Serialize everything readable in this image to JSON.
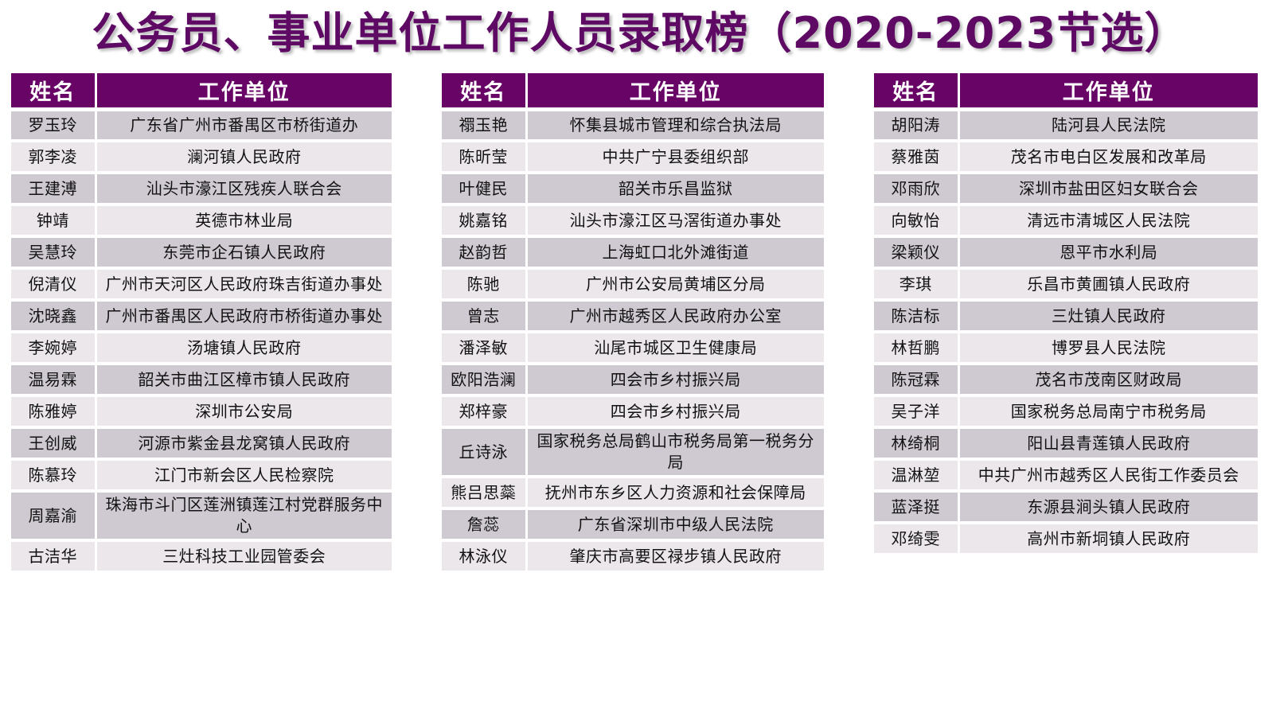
{
  "title": "公务员、事业单位工作人员录取榜（2020-2023节选）",
  "columns": {
    "name": "姓名",
    "unit": "工作单位"
  },
  "colors": {
    "header_bg": "#670466",
    "title_color": "#5e0a64",
    "row_dark": "#cfc9d2",
    "row_light": "#ebe7eb",
    "header_text": "#ffffff"
  },
  "tables": [
    {
      "rows": [
        {
          "name": "罗玉玲",
          "unit": "广东省广州市番禺区市桥街道办"
        },
        {
          "name": "郭李凌",
          "unit": "澜河镇人民政府"
        },
        {
          "name": "王建溥",
          "unit": "汕头市濠江区残疾人联合会"
        },
        {
          "name": "钟靖",
          "unit": "英德市林业局"
        },
        {
          "name": "吴慧玲",
          "unit": "东莞市企石镇人民政府"
        },
        {
          "name": "倪清仪",
          "unit": "广州市天河区人民政府珠吉街道办事处"
        },
        {
          "name": "沈晓鑫",
          "unit": "广州市番禺区人民政府市桥街道办事处"
        },
        {
          "name": "李婉婷",
          "unit": "汤塘镇人民政府"
        },
        {
          "name": "温易霖",
          "unit": "韶关市曲江区樟市镇人民政府"
        },
        {
          "name": "陈雅婷",
          "unit": "深圳市公安局"
        },
        {
          "name": "王创威",
          "unit": "河源市紫金县龙窝镇人民政府"
        },
        {
          "name": "陈慕玲",
          "unit": "江门市新会区人民检察院"
        },
        {
          "name": "周嘉渝",
          "unit": "珠海市斗门区莲洲镇莲江村党群服务中心"
        },
        {
          "name": "古洁华",
          "unit": "三灶科技工业园管委会"
        }
      ]
    },
    {
      "rows": [
        {
          "name": "禤玉艳",
          "unit": "怀集县城市管理和综合执法局"
        },
        {
          "name": "陈昕莹",
          "unit": "中共广宁县委组织部"
        },
        {
          "name": "叶健民",
          "unit": "韶关市乐昌监狱"
        },
        {
          "name": "姚嘉铭",
          "unit": "汕头市濠江区马滘街道办事处"
        },
        {
          "name": "赵韵哲",
          "unit": "上海虹口北外滩街道"
        },
        {
          "name": "陈驰",
          "unit": "广州市公安局黄埔区分局"
        },
        {
          "name": "曾志",
          "unit": "广州市越秀区人民政府办公室"
        },
        {
          "name": "潘泽敏",
          "unit": "汕尾市城区卫生健康局"
        },
        {
          "name": "欧阳浩澜",
          "unit": "四会市乡村振兴局"
        },
        {
          "name": "郑梓豪",
          "unit": "四会市乡村振兴局"
        },
        {
          "name": "丘诗泳",
          "unit": "国家税务总局鹤山市税务局第一税务分局"
        },
        {
          "name": "熊吕思蘂",
          "unit": "抚州市东乡区人力资源和社会保障局"
        },
        {
          "name": "詹蕊",
          "unit": "广东省深圳市中级人民法院"
        },
        {
          "name": "林泳仪",
          "unit": "肇庆市高要区禄步镇人民政府"
        }
      ]
    },
    {
      "rows": [
        {
          "name": "胡阳涛",
          "unit": "陆河县人民法院"
        },
        {
          "name": "蔡雅茵",
          "unit": "茂名市电白区发展和改革局"
        },
        {
          "name": "邓雨欣",
          "unit": "深圳市盐田区妇女联合会"
        },
        {
          "name": "向敏怡",
          "unit": "清远市清城区人民法院"
        },
        {
          "name": "梁颖仪",
          "unit": "恩平市水利局"
        },
        {
          "name": "李琪",
          "unit": "乐昌市黄圃镇人民政府"
        },
        {
          "name": "陈洁标",
          "unit": "三灶镇人民政府"
        },
        {
          "name": "林哲鹏",
          "unit": "博罗县人民法院"
        },
        {
          "name": "陈冠霖",
          "unit": "茂名市茂南区财政局"
        },
        {
          "name": "吴子洋",
          "unit": "国家税务总局南宁市税务局"
        },
        {
          "name": "林绮桐",
          "unit": "阳山县青莲镇人民政府"
        },
        {
          "name": "温淋堃",
          "unit": "中共广州市越秀区人民街工作委员会"
        },
        {
          "name": "蓝泽挺",
          "unit": "东源县涧头镇人民政府"
        },
        {
          "name": "邓绮雯",
          "unit": "高州市新垌镇人民政府"
        }
      ]
    }
  ]
}
